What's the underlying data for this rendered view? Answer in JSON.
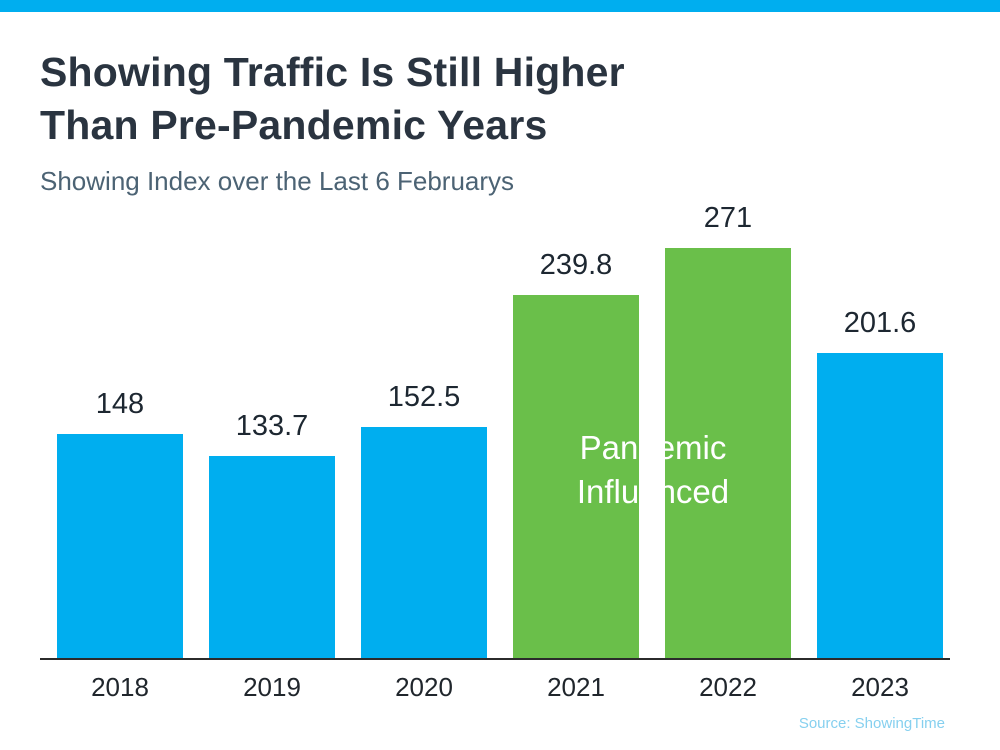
{
  "header": {
    "title_lines": [
      "Showing Traffic Is Still Higher",
      "Than Pre-Pandemic Years"
    ],
    "subtitle": "Showing Index over the Last 6 Februarys"
  },
  "chart_data": {
    "type": "bar",
    "title": "Showing Traffic Is Still Higher Than Pre-Pandemic Years",
    "subtitle": "Showing Index over the Last 6 Februarys",
    "categories": [
      "2018",
      "2019",
      "2020",
      "2021",
      "2022",
      "2023"
    ],
    "values": [
      148,
      133.7,
      152.5,
      239.8,
      271,
      201.6
    ],
    "value_labels": [
      "148",
      "133.7",
      "152.5",
      "239.8",
      "271",
      "201.6"
    ],
    "bar_colors": [
      "blue",
      "blue",
      "blue",
      "green",
      "green",
      "blue"
    ],
    "annotation": "Pandemic Influenced",
    "xlabel": "",
    "ylabel": "",
    "ylim": [
      0,
      280
    ],
    "grid": false,
    "legend": "none"
  },
  "colors": {
    "blue": "#00aeef",
    "green": "#6abf4a",
    "accent_bar": "#00aeef",
    "title_text": "#2a3440",
    "subtitle_text": "#4c6374",
    "value_label_text": "#1d2731",
    "x_label_text": "#20262c",
    "axis_line": "#2b2b2b",
    "annotation_text": "#ffffff",
    "source_text": "#86d0ef"
  },
  "footer": {
    "source": "Source: ShowingTime"
  }
}
